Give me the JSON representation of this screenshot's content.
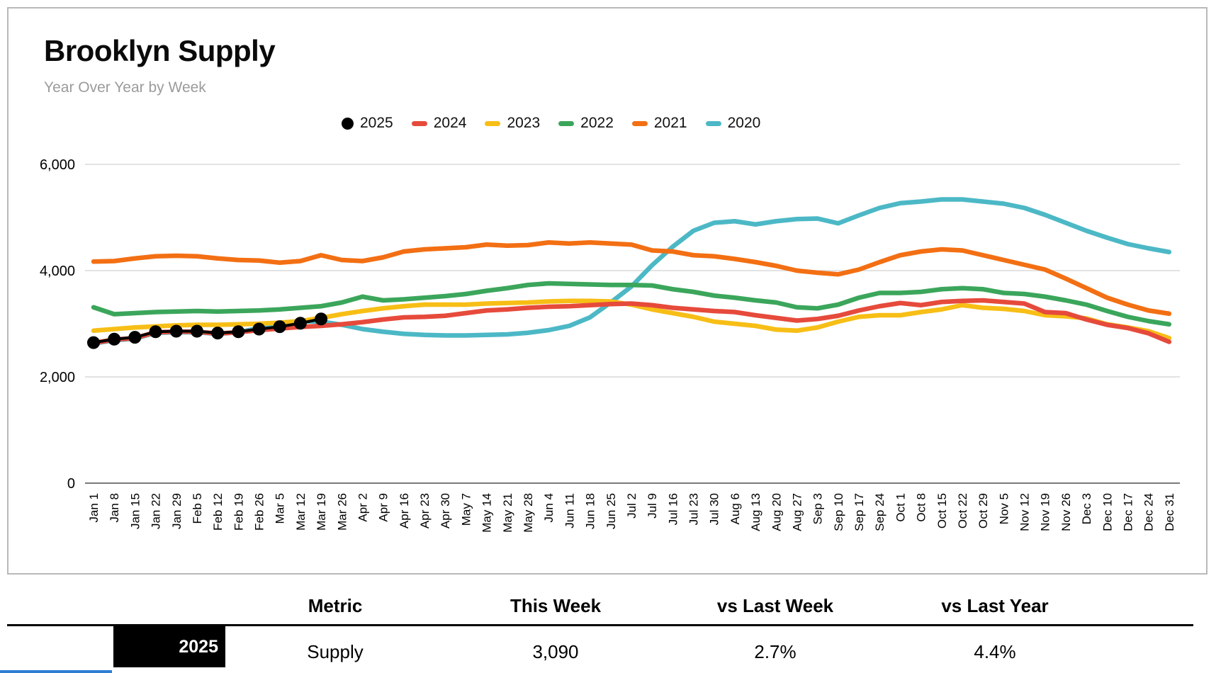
{
  "card": {
    "title": "Brooklyn Supply",
    "subtitle": "Year Over Year by Week"
  },
  "legend": [
    {
      "year": "2025",
      "color": "#000000",
      "marker": "circle"
    },
    {
      "year": "2024",
      "color": "#e64a3b",
      "marker": "dash"
    },
    {
      "year": "2023",
      "color": "#f7be16",
      "marker": "dash"
    },
    {
      "year": "2022",
      "color": "#3ba65b",
      "marker": "dash"
    },
    {
      "year": "2021",
      "color": "#f36f13",
      "marker": "dash"
    },
    {
      "year": "2020",
      "color": "#4cb8c6",
      "marker": "dash"
    }
  ],
  "chart_data": {
    "type": "line",
    "title": "Brooklyn Supply",
    "subtitle": "Year Over Year by Week",
    "xlabel": "",
    "ylabel": "",
    "ylim": [
      0,
      6000
    ],
    "grid": "horizontal",
    "legend_position": "top-center",
    "yticks": [
      {
        "value": 0,
        "label": "0"
      },
      {
        "value": 2000,
        "label": "2,000"
      },
      {
        "value": 4000,
        "label": "4,000"
      },
      {
        "value": 6000,
        "label": "6,000"
      }
    ],
    "x_labels": [
      "Jan 1",
      "Jan 8",
      "Jan 15",
      "Jan 22",
      "Jan 29",
      "Feb 5",
      "Feb 12",
      "Feb 19",
      "Feb 26",
      "Mar 5",
      "Mar 12",
      "Mar 19",
      "Mar 26",
      "Apr 2",
      "Apr 9",
      "Apr 16",
      "Apr 23",
      "Apr 30",
      "May 7",
      "May 14",
      "May 21",
      "May 28",
      "Jun 4",
      "Jun 11",
      "Jun 18",
      "Jun 25",
      "Jul 2",
      "Jul 9",
      "Jul 16",
      "Jul 23",
      "Jul 30",
      "Aug 6",
      "Aug 13",
      "Aug 20",
      "Aug 27",
      "Sep 3",
      "Sep 10",
      "Sep 17",
      "Sep 24",
      "Oct 1",
      "Oct 8",
      "Oct 15",
      "Oct 22",
      "Oct 29",
      "Nov 5",
      "Nov 12",
      "Nov 19",
      "Nov 26",
      "Dec 3",
      "Dec 10",
      "Dec 17",
      "Dec 24",
      "Dec 31"
    ],
    "series": [
      {
        "name": "2025",
        "color": "#000000",
        "marker": "circle",
        "values": [
          2645,
          2710,
          2745,
          2850,
          2860,
          2860,
          2825,
          2850,
          2900,
          2945,
          3010,
          3090
        ]
      },
      {
        "name": "2024",
        "color": "#e64a3b",
        "marker": "none",
        "values": [
          2640,
          2700,
          2730,
          2840,
          2850,
          2850,
          2815,
          2840,
          2880,
          2910,
          2940,
          2960,
          2990,
          3030,
          3080,
          3120,
          3130,
          3150,
          3200,
          3250,
          3270,
          3300,
          3320,
          3330,
          3350,
          3370,
          3380,
          3350,
          3300,
          3270,
          3240,
          3220,
          3160,
          3110,
          3060,
          3090,
          3150,
          3250,
          3330,
          3390,
          3350,
          3410,
          3430,
          3440,
          3410,
          3380,
          3220,
          3200,
          3080,
          2980,
          2920,
          2820,
          2660
        ]
      },
      {
        "name": "2023",
        "color": "#f7be16",
        "marker": "none",
        "values": [
          2870,
          2900,
          2930,
          2950,
          2970,
          2980,
          2980,
          2990,
          3000,
          3020,
          3050,
          3110,
          3180,
          3240,
          3290,
          3330,
          3360,
          3360,
          3360,
          3380,
          3390,
          3400,
          3420,
          3430,
          3430,
          3420,
          3360,
          3270,
          3200,
          3130,
          3040,
          3000,
          2960,
          2890,
          2870,
          2930,
          3040,
          3130,
          3160,
          3160,
          3220,
          3270,
          3350,
          3300,
          3280,
          3240,
          3160,
          3140,
          3100,
          2990,
          2930,
          2860,
          2730
        ]
      },
      {
        "name": "2022",
        "color": "#3ba65b",
        "marker": "none",
        "values": [
          3310,
          3180,
          3200,
          3220,
          3230,
          3240,
          3230,
          3240,
          3250,
          3270,
          3300,
          3330,
          3400,
          3510,
          3440,
          3460,
          3490,
          3520,
          3560,
          3620,
          3670,
          3730,
          3760,
          3750,
          3740,
          3730,
          3730,
          3720,
          3650,
          3600,
          3530,
          3490,
          3440,
          3400,
          3310,
          3290,
          3360,
          3490,
          3580,
          3580,
          3600,
          3650,
          3670,
          3650,
          3580,
          3560,
          3510,
          3440,
          3360,
          3240,
          3130,
          3050,
          2990
        ]
      },
      {
        "name": "2021",
        "color": "#f36f13",
        "marker": "none",
        "values": [
          4170,
          4180,
          4230,
          4270,
          4280,
          4270,
          4230,
          4200,
          4190,
          4150,
          4180,
          4290,
          4200,
          4180,
          4250,
          4360,
          4400,
          4420,
          4440,
          4490,
          4470,
          4480,
          4530,
          4510,
          4530,
          4510,
          4490,
          4380,
          4360,
          4290,
          4270,
          4220,
          4160,
          4090,
          4000,
          3960,
          3930,
          4020,
          4160,
          4290,
          4360,
          4400,
          4380,
          4290,
          4200,
          4110,
          4020,
          3850,
          3670,
          3490,
          3360,
          3250,
          3190
        ]
      },
      {
        "name": "2020",
        "color": "#4cb8c6",
        "marker": "none",
        "values": [
          2630,
          2690,
          2720,
          2830,
          2840,
          2840,
          2810,
          2840,
          2920,
          3000,
          3050,
          3040,
          2980,
          2900,
          2850,
          2810,
          2790,
          2780,
          2780,
          2790,
          2800,
          2830,
          2880,
          2960,
          3120,
          3400,
          3700,
          4100,
          4450,
          4750,
          4900,
          4930,
          4870,
          4930,
          4970,
          4980,
          4890,
          5040,
          5180,
          5270,
          5300,
          5340,
          5340,
          5300,
          5260,
          5180,
          5050,
          4900,
          4750,
          4620,
          4500,
          4420,
          4350
        ]
      }
    ]
  },
  "table": {
    "headers": [
      "Metric",
      "This Week",
      "vs Last Week",
      "vs Last Year"
    ],
    "rows": [
      {
        "year": "2025",
        "year_bg": "#000000",
        "metric": "Supply",
        "this_week": "3,090",
        "vs_last_week": "2.7%",
        "vs_last_year": "4.4%"
      }
    ]
  },
  "colors": {
    "axis_line": "#7a7a7a",
    "gridline": "#d9d9d9",
    "subtitle": "#9b9b9b",
    "card_border": "#b9b9b9",
    "next_row_peek": "#2e7ed2"
  }
}
